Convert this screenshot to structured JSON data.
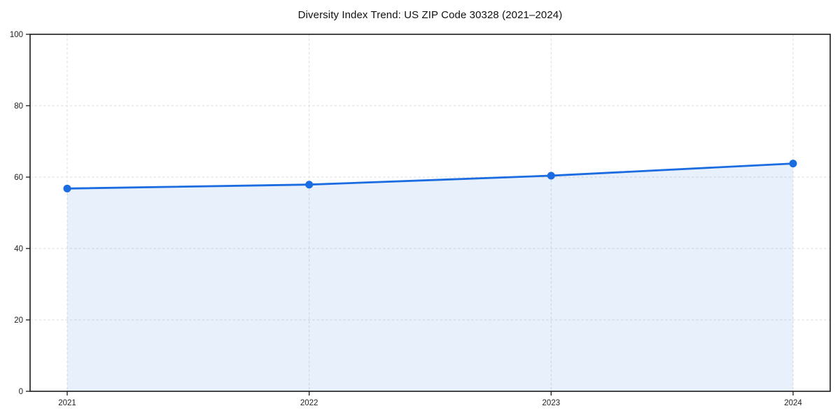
{
  "chart_data": {
    "type": "area",
    "title": "Diversity Index Trend: US ZIP Code 30328 (2021–2024)",
    "categories": [
      "2021",
      "2022",
      "2023",
      "2024"
    ],
    "series": [
      {
        "name": "Diversity Index",
        "values": [
          56.8,
          57.9,
          60.4,
          63.8
        ]
      }
    ],
    "xlabel": "",
    "ylabel": "",
    "ylim": [
      0,
      100
    ],
    "yticks": [
      0,
      20,
      40,
      60,
      80,
      100
    ],
    "grid": {
      "visible": true,
      "style": "dashed",
      "axes": "both"
    },
    "legend_position": "none",
    "marker": "circle",
    "colors": {
      "line": "#1b6ce0",
      "marker": "#1b6ce0",
      "fill": "rgba(27,108,224,0.10)",
      "grid": "#dedede",
      "axis": "#1a1a1a",
      "tick_label": "#222222",
      "title": "#111111",
      "background": "#ffffff"
    }
  }
}
